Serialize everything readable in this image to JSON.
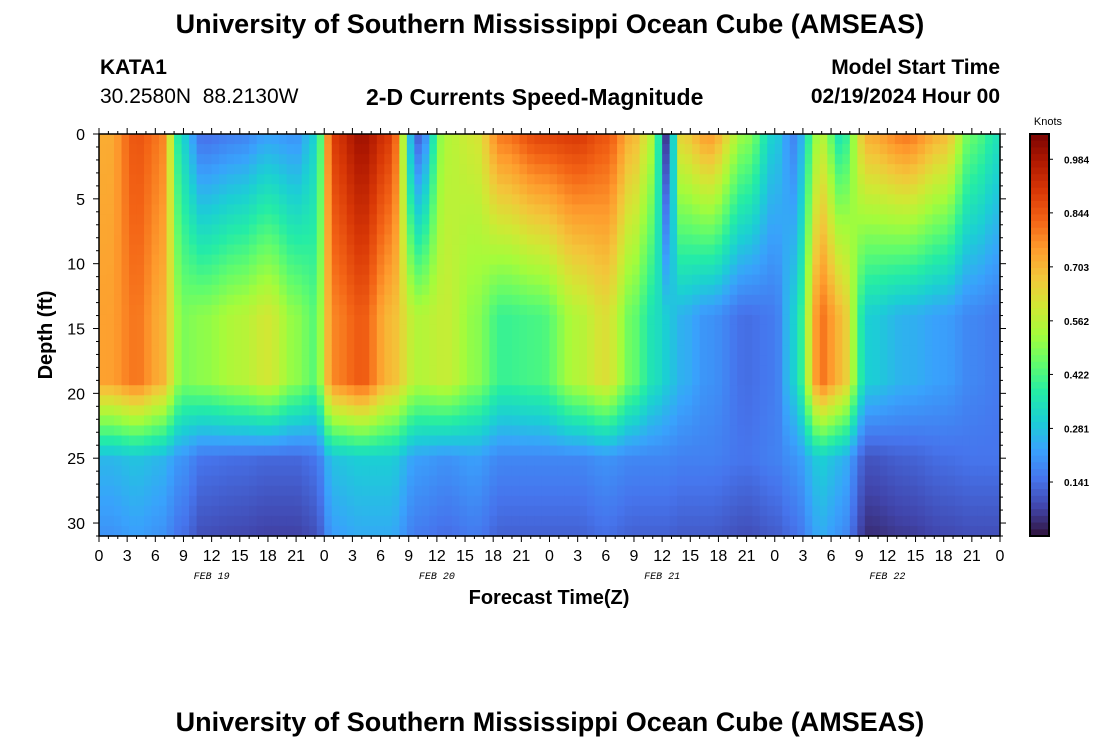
{
  "page": {
    "title_top": "University of Southern Mississippi Ocean Cube (AMSEAS)",
    "title_bottom": "University of Southern Mississippi Ocean Cube (AMSEAS)",
    "station_id": "KATA1",
    "coordinates": "30.2580N  88.2130W",
    "chart_title": "2-D Currents Speed-Magnitude",
    "model_start_label": "Model Start Time",
    "model_start_value": "02/19/2024 Hour 00"
  },
  "chart_data": {
    "type": "heatmap",
    "title": "2-D Currents Speed-Magnitude",
    "xlabel": "Forecast Time(Z)",
    "ylabel": "Depth (ft)",
    "x_tick_labels": [
      "0",
      "3",
      "6",
      "9",
      "12",
      "15",
      "18",
      "21",
      "0",
      "3",
      "6",
      "9",
      "12",
      "15",
      "18",
      "21",
      "0",
      "3",
      "6",
      "9",
      "12",
      "15",
      "18",
      "21",
      "0",
      "3",
      "6",
      "9",
      "12",
      "15",
      "18",
      "21",
      "0"
    ],
    "date_labels": [
      "FEB 19",
      "FEB 20",
      "FEB 21",
      "FEB 22"
    ],
    "x_range_hours": [
      0,
      96
    ],
    "y_ticks": [
      0,
      5,
      10,
      15,
      20,
      25,
      30
    ],
    "y_range_ft": [
      0,
      31
    ],
    "y_inverted": true,
    "colorbar": {
      "unit": "Knots",
      "tick_labels": [
        "0.984",
        "0.844",
        "0.703",
        "0.562",
        "0.422",
        "0.281",
        "0.141"
      ],
      "range": [
        0,
        1.05
      ]
    },
    "colors": {
      "colormap": [
        "#30123b",
        "#4145ab",
        "#4675ed",
        "#39a2fc",
        "#1bcfd4",
        "#24eca6",
        "#61fc6c",
        "#a4fc3b",
        "#d1e834",
        "#f3c63a",
        "#fe9b2d",
        "#f36315",
        "#d93806",
        "#b11901",
        "#7a0402"
      ]
    },
    "feature_columns": [
      {
        "time": 1,
        "surface": 0.72,
        "mid": 0.74,
        "deep": 0.26
      },
      {
        "time": 4,
        "surface": 0.85,
        "mid": 0.8,
        "deep": 0.28
      },
      {
        "time": 6.5,
        "surface": 0.8,
        "mid": 0.72,
        "deep": 0.26
      },
      {
        "time": 9,
        "surface": 0.3,
        "mid": 0.48,
        "deep": 0.2
      },
      {
        "time": 11,
        "surface": 0.14,
        "mid": 0.5,
        "deep": 0.15
      },
      {
        "time": 15,
        "surface": 0.17,
        "mid": 0.55,
        "deep": 0.14
      },
      {
        "time": 18,
        "surface": 0.22,
        "mid": 0.6,
        "deep": 0.13
      },
      {
        "time": 21,
        "surface": 0.2,
        "mid": 0.5,
        "deep": 0.13
      },
      {
        "time": 23,
        "surface": 0.3,
        "mid": 0.44,
        "deep": 0.15
      },
      {
        "time": 25,
        "surface": 0.9,
        "mid": 0.78,
        "deep": 0.28
      },
      {
        "time": 28,
        "surface": 1.0,
        "mid": 0.84,
        "deep": 0.3
      },
      {
        "time": 31,
        "surface": 0.9,
        "mid": 0.7,
        "deep": 0.3
      },
      {
        "time": 34,
        "surface": 0.12,
        "mid": 0.55,
        "deep": 0.22
      },
      {
        "time": 37,
        "surface": 0.55,
        "mid": 0.58,
        "deep": 0.2
      },
      {
        "time": 40,
        "surface": 0.6,
        "mid": 0.5,
        "deep": 0.22
      },
      {
        "time": 43,
        "surface": 0.8,
        "mid": 0.4,
        "deep": 0.18
      },
      {
        "time": 47,
        "surface": 0.88,
        "mid": 0.42,
        "deep": 0.18
      },
      {
        "time": 51,
        "surface": 0.9,
        "mid": 0.55,
        "deep": 0.18
      },
      {
        "time": 54,
        "surface": 0.85,
        "mid": 0.62,
        "deep": 0.2
      },
      {
        "time": 57,
        "surface": 0.7,
        "mid": 0.45,
        "deep": 0.18
      },
      {
        "time": 59,
        "surface": 0.55,
        "mid": 0.35,
        "deep": 0.18
      },
      {
        "time": 60.5,
        "surface": 0.05,
        "mid": 0.3,
        "deep": 0.18
      },
      {
        "time": 62,
        "surface": 0.65,
        "mid": 0.25,
        "deep": 0.17
      },
      {
        "time": 65,
        "surface": 0.75,
        "mid": 0.2,
        "deep": 0.17
      },
      {
        "time": 69,
        "surface": 0.5,
        "mid": 0.14,
        "deep": 0.15
      },
      {
        "time": 72,
        "surface": 0.3,
        "mid": 0.16,
        "deep": 0.17
      },
      {
        "time": 74,
        "surface": 0.18,
        "mid": 0.3,
        "deep": 0.2
      },
      {
        "time": 77,
        "surface": 0.55,
        "mid": 0.8,
        "deep": 0.3
      },
      {
        "time": 79,
        "surface": 0.35,
        "mid": 0.7,
        "deep": 0.26
      },
      {
        "time": 82,
        "surface": 0.72,
        "mid": 0.3,
        "deep": 0.1
      },
      {
        "time": 86,
        "surface": 0.8,
        "mid": 0.25,
        "deep": 0.12
      },
      {
        "time": 90,
        "surface": 0.7,
        "mid": 0.22,
        "deep": 0.14
      },
      {
        "time": 93,
        "surface": 0.45,
        "mid": 0.18,
        "deep": 0.15
      },
      {
        "time": 96,
        "surface": 0.35,
        "mid": 0.16,
        "deep": 0.15
      }
    ]
  }
}
